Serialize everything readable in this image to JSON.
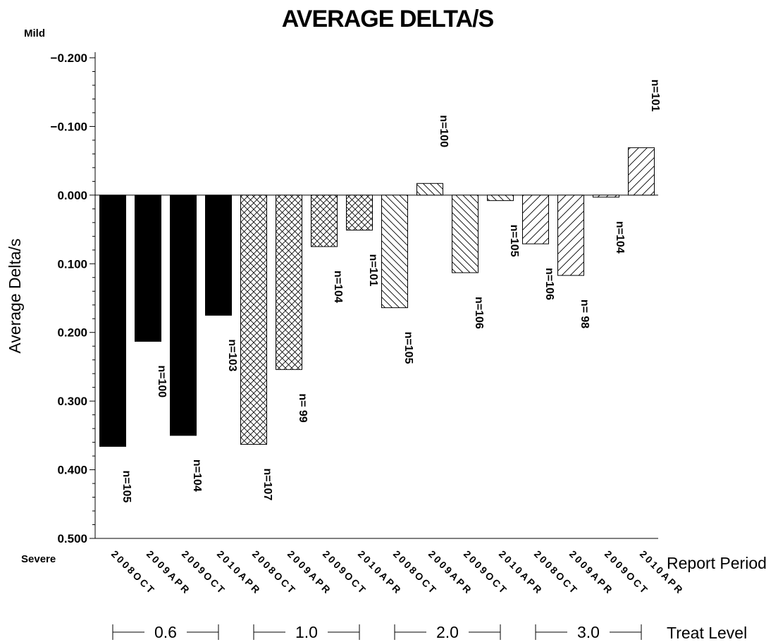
{
  "chart_data": {
    "type": "bar",
    "title": "AVERAGE DELTA/S",
    "ylabel": "Average Delta/s",
    "y_top_label": "Mild",
    "y_bottom_label": "Severe",
    "ylim": [
      -0.2,
      0.5
    ],
    "y_reversed": true,
    "y_ticks": [
      "-0.200",
      "-0.100",
      "0.000",
      "0.100",
      "0.200",
      "0.300",
      "0.400",
      "0.500"
    ],
    "x_axis_label": "Report Period",
    "group_axis_label": "Treat Level",
    "categories": [
      "2008OCT",
      "2009APR",
      "2009OCT",
      "2010APR",
      "2008OCT",
      "2009APR",
      "2009OCT",
      "2010APR",
      "2008OCT",
      "2009APR",
      "2009OCT",
      "2010APR",
      "2008OCT",
      "2009APR",
      "2009OCT",
      "2010APR"
    ],
    "groups": [
      {
        "label": "0.6",
        "pattern": "solid"
      },
      {
        "label": "1.0",
        "pattern": "crosshatch"
      },
      {
        "label": "2.0",
        "pattern": "diagonal-left"
      },
      {
        "label": "3.0",
        "pattern": "diagonal-right"
      }
    ],
    "values": [
      0.366,
      0.213,
      0.35,
      0.175,
      0.363,
      0.254,
      0.075,
      0.051,
      0.164,
      -0.017,
      0.113,
      0.008,
      0.071,
      0.117,
      0.003,
      -0.069
    ],
    "n_labels": [
      "n=105",
      "n=100",
      "n=104",
      "n=103",
      "n=107",
      "n= 99",
      "n=104",
      "n=101",
      "n=105",
      "n=100",
      "n=106",
      "n=105",
      "n=106",
      "n= 98",
      "n=104",
      "n=101"
    ]
  }
}
